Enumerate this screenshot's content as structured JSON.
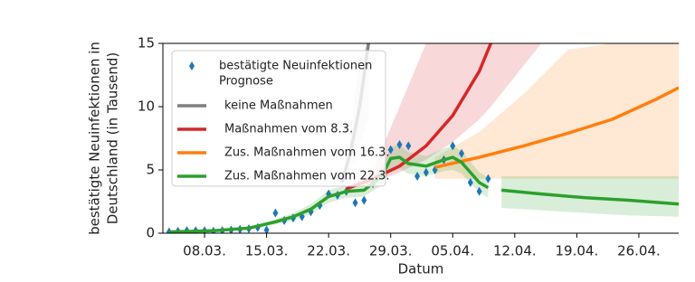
{
  "chart_data": {
    "type": "line",
    "xlabel": "Datum",
    "ylabel": [
      "bestätigte Neuinfektionen in",
      "Deutschland (in Tausend)"
    ],
    "xlim": [
      2.3,
      60.5
    ],
    "ylim": [
      0,
      15
    ],
    "xticks": [
      {
        "value": 7,
        "label": "08.03."
      },
      {
        "value": 14,
        "label": "15.03."
      },
      {
        "value": 21,
        "label": "22.03."
      },
      {
        "value": 28,
        "label": "29.03."
      },
      {
        "value": 35,
        "label": "05.04."
      },
      {
        "value": 42,
        "label": "12.04."
      },
      {
        "value": 49,
        "label": "19.04."
      },
      {
        "value": 56,
        "label": "26.04."
      }
    ],
    "yticks": [
      0,
      5,
      10,
      15
    ],
    "legend": "upper left",
    "legend_subtitle": "Prognose",
    "series": [
      {
        "name": "bestätigte Neuinfektionen",
        "type": "scatter",
        "marker": "diamond",
        "color": "#1f77b4",
        "x": [
          3,
          4,
          5,
          6,
          7,
          8,
          9,
          10,
          11,
          12,
          13,
          14,
          15,
          16,
          17,
          18,
          19,
          20,
          21,
          22,
          23,
          24,
          25,
          26,
          27,
          28,
          29,
          30,
          31,
          32,
          33,
          34,
          35,
          36,
          37,
          38,
          39
        ],
        "values": [
          0.1,
          0.15,
          0.2,
          0.2,
          0.2,
          0.15,
          0.2,
          0.25,
          0.3,
          0.35,
          0.45,
          0.25,
          1.6,
          1.0,
          1.2,
          1.3,
          1.7,
          2.2,
          3.1,
          3.0,
          3.3,
          2.4,
          2.6,
          3.9,
          4.6,
          6.6,
          7.0,
          6.9,
          4.5,
          4.8,
          5.0,
          5.8,
          6.9,
          6.3,
          4.0,
          3.3,
          4.3
        ]
      },
      {
        "name": "keine Maßnahmen",
        "type": "line",
        "color": "#7f7f7f",
        "x": [
          22.5,
          23.5,
          24.5,
          25.5
        ],
        "values": [
          4,
          6.5,
          10,
          15
        ],
        "lower": [
          3.8,
          5,
          7,
          9
        ],
        "upper": [
          4.2,
          8,
          14,
          15
        ]
      },
      {
        "name": "Maßnahmen vom 8.3.",
        "type": "line",
        "color": "#d62728",
        "x": [
          23,
          26,
          29,
          32,
          35,
          38,
          39.3,
          45
        ],
        "values": [
          3.5,
          4.3,
          5.3,
          6.9,
          9.3,
          12.8,
          15,
          null
        ],
        "lower": [
          3.4,
          4.0,
          4.8,
          5.8,
          7.2,
          9.0,
          10.0,
          15
        ],
        "upper": [
          3.6,
          5,
          10,
          15,
          15,
          15,
          15,
          15
        ]
      },
      {
        "name": "Zus. Maßnahmen vom 16.3.",
        "type": "line",
        "color": "#ff7f0e",
        "x": [
          33,
          38,
          43,
          48,
          53,
          58,
          60.5
        ],
        "values": [
          5.2,
          6.0,
          6.9,
          7.9,
          9.0,
          10.6,
          11.5
        ],
        "lower": [
          4.3,
          4.3,
          4.3,
          4.3,
          4.3,
          4.3,
          4.3
        ],
        "upper": [
          6,
          8,
          11,
          14.5,
          15,
          15,
          15
        ]
      },
      {
        "name": "Zus. Maßnahmen vom 22.3.",
        "type": "line",
        "color": "#2ca02c",
        "x": [
          3,
          8,
          12,
          15,
          17,
          19,
          21,
          23,
          25,
          27,
          28,
          29,
          30,
          32,
          34,
          35,
          36,
          38,
          39,
          40,
          40.5,
          45,
          50,
          55,
          60.5
        ],
        "values": [
          0.1,
          0.2,
          0.4,
          0.9,
          1.3,
          1.9,
          2.9,
          3.3,
          3.4,
          4.5,
          5.9,
          6.0,
          5.5,
          5.3,
          5.8,
          6.0,
          5.6,
          4.0,
          3.6,
          null,
          3.4,
          3.1,
          2.8,
          2.6,
          2.3
        ],
        "lower": [
          0.05,
          0.1,
          0.3,
          0.7,
          1.0,
          1.5,
          2.4,
          2.8,
          2.9,
          3.8,
          5.0,
          5.1,
          4.7,
          4.5,
          4.9,
          5.0,
          4.7,
          3.2,
          2.8,
          null,
          2.0,
          1.8,
          1.6,
          1.4,
          1.3
        ],
        "upper": [
          0.15,
          0.3,
          0.5,
          1.1,
          1.6,
          2.3,
          3.4,
          3.8,
          3.9,
          5.2,
          6.8,
          7.0,
          6.4,
          6.1,
          6.7,
          6.9,
          6.5,
          4.8,
          4.4,
          null,
          4.5,
          4.5,
          4.5,
          4.5,
          4.5
        ]
      }
    ]
  }
}
